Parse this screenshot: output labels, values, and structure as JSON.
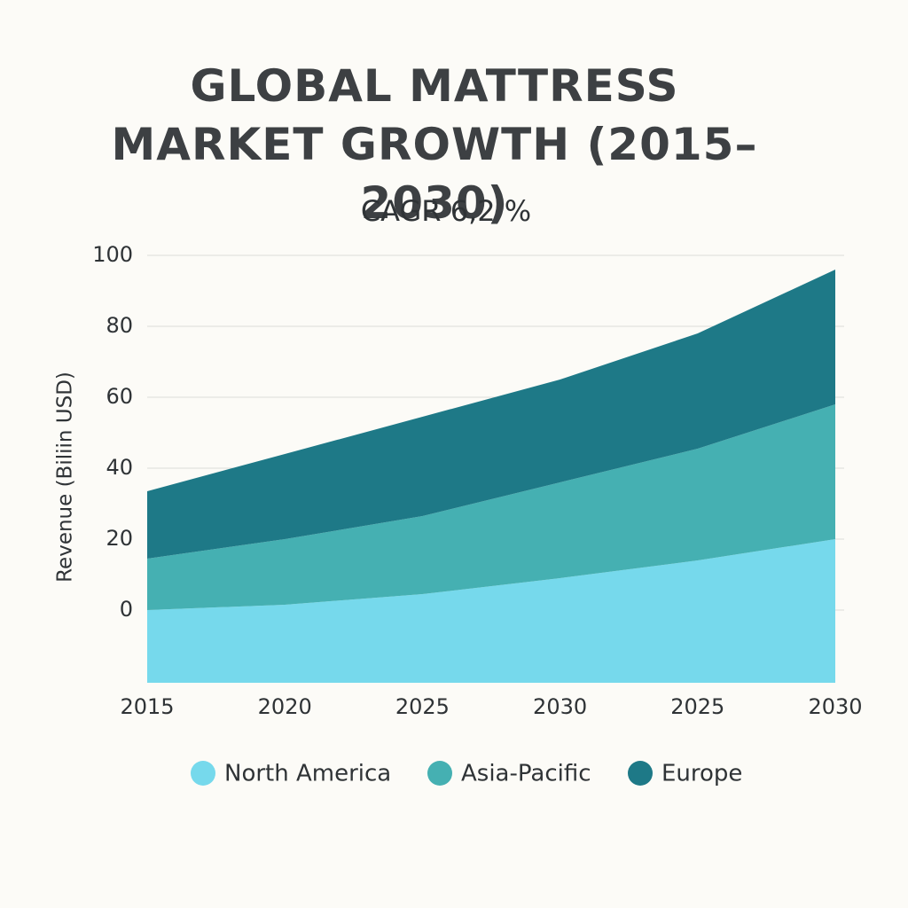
{
  "chart_data": {
    "type": "stacked-area",
    "title": "GLOBAL MATTRESS MARKET GROWTH (2015–2030)",
    "subtitle": "CAGR 6,2 %",
    "y_label": "Revenue (Biliin USD)",
    "categories": [
      "2015",
      "2020",
      "2025",
      "2030",
      "2025",
      "2030"
    ],
    "series": [
      {
        "name": "North America",
        "color": "#76d9ec",
        "values": [
          0,
          1.5,
          4.5,
          9,
          14,
          20
        ]
      },
      {
        "name": "Asia-Pacific",
        "color": "#45b0b2",
        "values": [
          14.5,
          18.5,
          22,
          27,
          31.5,
          38
        ]
      },
      {
        "name": "Europe",
        "color": "#1e7987",
        "values": [
          19,
          24,
          28,
          29,
          32.5,
          38
        ]
      }
    ],
    "ylim": [
      -20.5,
      100
    ],
    "yticks": [
      0,
      20,
      40,
      60,
      80,
      100
    ],
    "grid": true
  }
}
